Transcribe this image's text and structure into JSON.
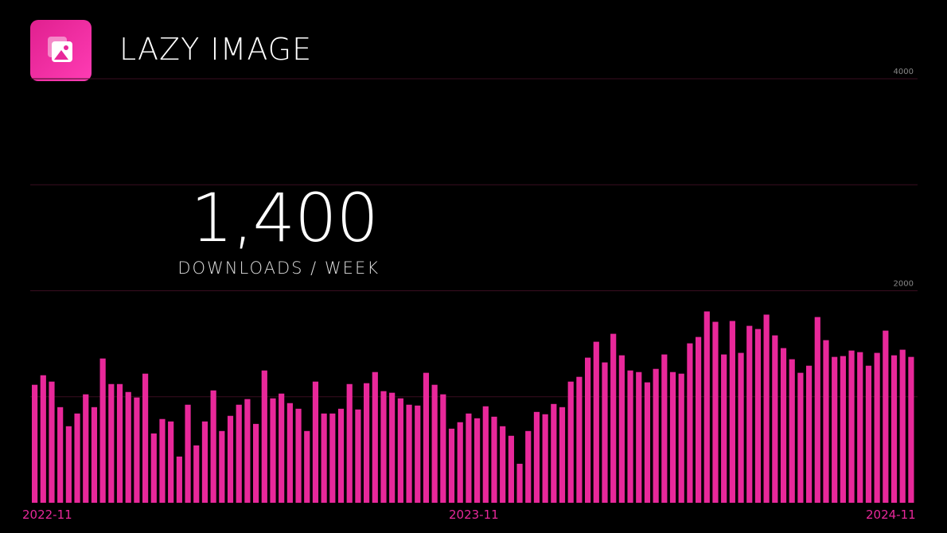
{
  "header": {
    "title": "LAZY IMAGE",
    "logo_icon": "image-icon"
  },
  "stat": {
    "value": "1,400",
    "label": "DOWNLOADS / WEEK"
  },
  "colors": {
    "bar": "#e8289a",
    "grid": "#3a0e20",
    "background": "#000000"
  },
  "chart_data": {
    "type": "bar",
    "title": "",
    "ylim": [
      0,
      4000
    ],
    "grid": true,
    "y_tick_labels": [
      "4000",
      "2000"
    ],
    "y_ticks": [
      4000,
      2000
    ],
    "gridlines": [
      0,
      1000,
      2000,
      3000,
      4000
    ],
    "x_tick_labels": [
      "2022-11",
      "2023-11",
      "2024-11"
    ],
    "values": [
      1113,
      1203,
      1143,
      902,
      722,
      842,
      1023,
      902,
      1361,
      1120,
      1120,
      1045,
      993,
      1218,
      654,
      790,
      767,
      436,
      925,
      541,
      767,
      1060,
      677,
      820,
      925,
      978,
      744,
      1248,
      985,
      1030,
      940,
      887,
      677,
      1143,
      842,
      842,
      887,
      1120,
      880,
      1128,
      1233,
      1053,
      1038,
      985,
      925,
      917,
      1226,
      1113,
      1023,
      699,
      760,
      842,
      797,
      910,
      812,
      722,
      632,
      368,
      677,
      857,
      835,
      932,
      902,
      1143,
      1188,
      1369,
      1519,
      1324,
      1594,
      1391,
      1248,
      1233,
      1136,
      1263,
      1399,
      1233,
      1218,
      1504,
      1564,
      1805,
      1707,
      1399,
      1715,
      1414,
      1669,
      1639,
      1775,
      1579,
      1459,
      1354,
      1226,
      1293,
      1752,
      1534,
      1376,
      1384,
      1436,
      1421,
      1293,
      1414,
      1624,
      1391,
      1444,
      1376
    ]
  }
}
